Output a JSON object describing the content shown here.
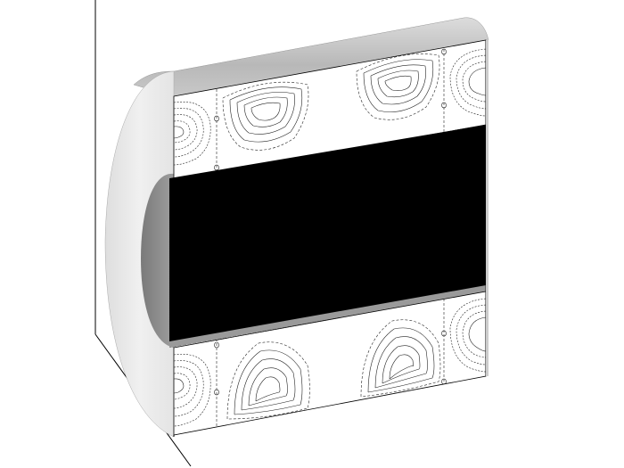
{
  "figure": {
    "kind": "3d-cutaway-cylinder-annulus",
    "colors": {
      "background": "#ffffff",
      "axis_lines": "#000000",
      "outer_cylinder_top": "#b8b8b8",
      "outer_cylinder_top_light": "#dcdcdc",
      "outer_cylinder_side": "#e8e8e8",
      "inner_hole": "#8c8c8c",
      "inner_cylinder": "#000000",
      "inner_cylinder_rim": "#9a9a9a",
      "contour_panel": "#ffffff",
      "contour_lines": "#222222"
    },
    "contour_panels": [
      {
        "name": "upper-annulus-section",
        "cells": 4
      },
      {
        "name": "lower-annulus-section",
        "cells": 4
      }
    ]
  }
}
